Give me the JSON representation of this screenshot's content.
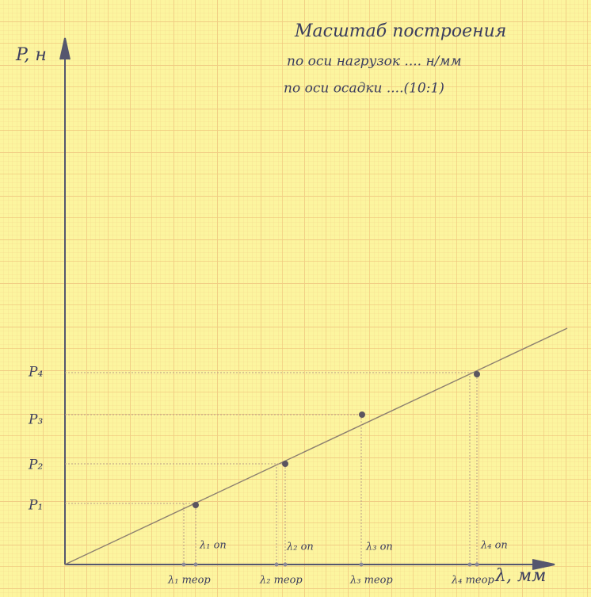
{
  "scale_note": {
    "title": "Масштаб построения",
    "load_axis": "по оси нагрузок ....  н/мм",
    "settlement_axis": "по оси осадки ....(10:1)"
  },
  "y_axis": {
    "label": "P, н",
    "ticks": [
      "P₁",
      "P₂",
      "P₃",
      "P₄"
    ]
  },
  "x_axis": {
    "label": "λ, мм",
    "theoretical": [
      "λ₁ теор",
      "λ₂ теор",
      "λ₃ теор",
      "λ₄ теор"
    ],
    "experimental": [
      "λ₁ оп",
      "λ₂ оп",
      "λ₃ оп",
      "λ₄ оп"
    ]
  }
}
